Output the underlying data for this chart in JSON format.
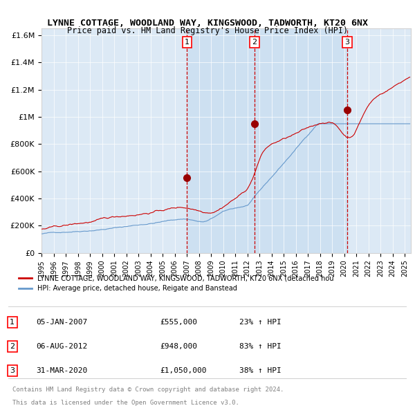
{
  "title_line1": "LYNNE COTTAGE, WOODLAND WAY, KINGSWOOD, TADWORTH, KT20 6NX",
  "title_line2": "Price paid vs. HM Land Registry's House Price Index (HPI)",
  "title_fontsize": 10,
  "subtitle_fontsize": 9,
  "ylabel": "",
  "xlabel": "",
  "background_color": "#ffffff",
  "plot_bg_color": "#dce9f5",
  "legend_red_label": "LYNNE COTTAGE, WOODLAND WAY, KINGSWOOD, TADWORTH, KT20 6NX (detached hou",
  "legend_blue_label": "HPI: Average price, detached house, Reigate and Banstead",
  "sale_events": [
    {
      "num": 1,
      "date_x": 2007.02,
      "price": 555000,
      "label": "05-JAN-2007",
      "pct": "23%",
      "dir": "↑"
    },
    {
      "num": 2,
      "date_x": 2012.58,
      "price": 948000,
      "label": "06-AUG-2012",
      "pct": "83%",
      "dir": "↑"
    },
    {
      "num": 3,
      "date_x": 2020.24,
      "price": 1050000,
      "label": "31-MAR-2020",
      "pct": "38%",
      "dir": "↑"
    }
  ],
  "ylim": [
    0,
    1650000
  ],
  "xlim_start": 1995.0,
  "xlim_end": 2025.5,
  "red_color": "#cc0000",
  "blue_color": "#6699cc",
  "dot_color": "#990000",
  "vline_color": "#cc0000",
  "shade_color": "#c8ddf0",
  "footer1": "Contains HM Land Registry data © Crown copyright and database right 2024.",
  "footer2": "This data is licensed under the Open Government Licence v3.0."
}
